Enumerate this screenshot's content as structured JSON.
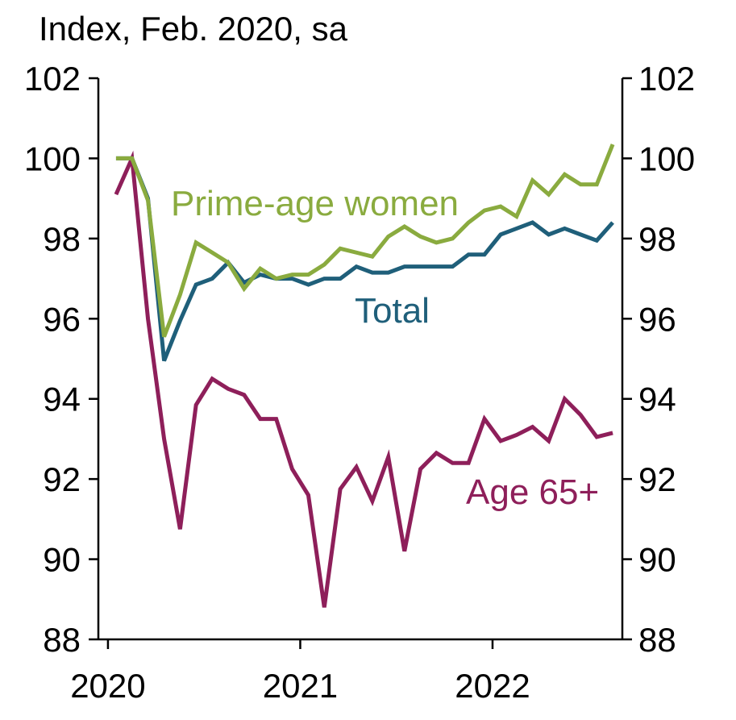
{
  "chart_data": {
    "type": "line",
    "y_axis_label": "Index, Feb. 2020, sa",
    "x": [
      2020.042,
      2020.125,
      2020.208,
      2020.292,
      2020.375,
      2020.458,
      2020.542,
      2020.625,
      2020.708,
      2020.792,
      2020.875,
      2020.958,
      2021.042,
      2021.125,
      2021.208,
      2021.292,
      2021.375,
      2021.458,
      2021.542,
      2021.625,
      2021.708,
      2021.792,
      2021.875,
      2021.958,
      2022.042,
      2022.125,
      2022.208,
      2022.292,
      2022.375,
      2022.458,
      2022.542,
      2022.625
    ],
    "series": [
      {
        "name": "Prime-age women",
        "color": "#8aab3f",
        "values": [
          100,
          100,
          98.95,
          95.55,
          96.6,
          97.9,
          97.65,
          97.4,
          96.75,
          97.25,
          97.0,
          97.1,
          97.1,
          97.35,
          97.75,
          97.65,
          97.55,
          98.05,
          98.3,
          98.05,
          97.9,
          98.0,
          98.4,
          98.7,
          98.8,
          98.55,
          99.45,
          99.1,
          99.6,
          99.35,
          99.35,
          100.35
        ]
      },
      {
        "name": "Total",
        "color": "#1f5f7a",
        "values": [
          100,
          100,
          99.0,
          94.95,
          95.95,
          96.85,
          97.0,
          97.4,
          96.9,
          97.1,
          97.0,
          97.0,
          96.85,
          97.0,
          97.0,
          97.3,
          97.15,
          97.15,
          97.3,
          97.3,
          97.3,
          97.3,
          97.6,
          97.6,
          98.1,
          98.25,
          98.4,
          98.1,
          98.25,
          98.1,
          97.95,
          98.4
        ]
      },
      {
        "name": "Age 65+",
        "color": "#8e1f5a",
        "values": [
          99.1,
          100,
          96.0,
          93.0,
          90.75,
          93.85,
          94.5,
          94.25,
          94.1,
          93.5,
          93.5,
          92.25,
          91.6,
          88.8,
          91.75,
          92.3,
          91.45,
          92.55,
          90.2,
          92.25,
          92.65,
          92.4,
          92.4,
          93.5,
          92.95,
          93.1,
          93.3,
          92.95,
          94.0,
          93.6,
          93.05,
          93.15
        ]
      }
    ],
    "xlim": [
      2019.95,
      2022.675
    ],
    "xticks": [
      2020,
      2021,
      2022
    ],
    "ylim": [
      88,
      102
    ],
    "yticks": [
      88,
      90,
      92,
      94,
      96,
      98,
      100,
      102
    ],
    "y2lim": [
      88,
      102
    ],
    "y2ticks": [
      88,
      90,
      92,
      94,
      96,
      98,
      100,
      102
    ]
  }
}
